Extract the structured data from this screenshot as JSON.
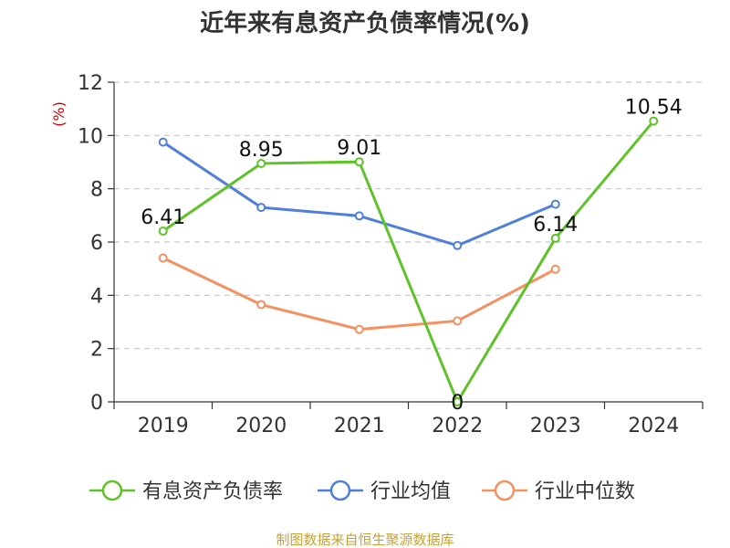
{
  "chart_data": {
    "type": "line",
    "title": "近年来有息资产负债率情况(%)",
    "ylabel": "(%)",
    "categories": [
      "2019",
      "2020",
      "2021",
      "2022",
      "2023",
      "2024"
    ],
    "yticks": [
      "0",
      "2",
      "4",
      "6",
      "8",
      "10",
      "12"
    ],
    "ylim": [
      0,
      12
    ],
    "grid": true,
    "legend_position": "bottom",
    "series": [
      {
        "name": "有息资产负债率",
        "color": "#5ec229",
        "values": [
          6.41,
          8.95,
          9.01,
          0,
          6.14,
          10.54
        ],
        "labels": [
          "6.41",
          "8.95",
          "9.01",
          "0",
          "6.14",
          "10.54"
        ]
      },
      {
        "name": "行业均值",
        "color": "#4f7fdb",
        "values": [
          9.75,
          7.3,
          6.98,
          5.87,
          7.42,
          null
        ]
      },
      {
        "name": "行业中位数",
        "color": "#f59160",
        "values": [
          5.4,
          3.65,
          2.72,
          3.04,
          4.98,
          null
        ]
      }
    ],
    "source": "制图数据来自恒生聚源数据库",
    "source_color": "#c8a13a",
    "ylabel_color": "#cc0000"
  }
}
